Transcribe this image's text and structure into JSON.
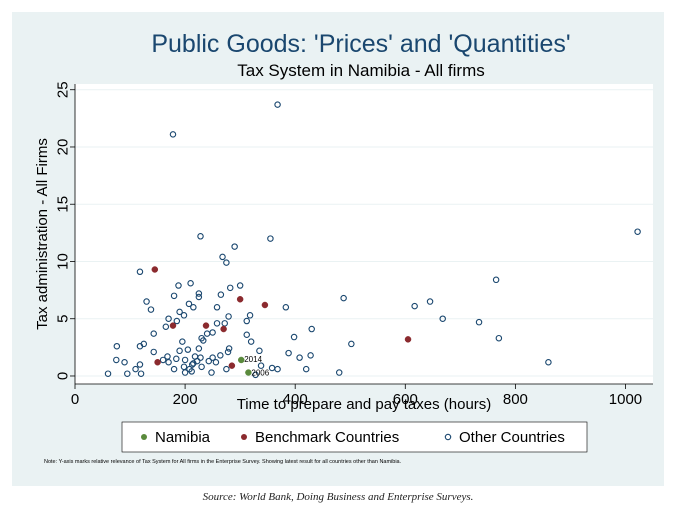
{
  "chart_data": {
    "type": "scatter",
    "title": "Public Goods: 'Prices' and 'Quantities'",
    "subtitle": "Tax System in Namibia - All firms",
    "xlabel": "Time to prepare and pay taxes (hours)",
    "ylabel": "Tax administration - All Firms",
    "xlim": [
      0,
      1050
    ],
    "ylim": [
      -0.7,
      25.5
    ],
    "xticks": [
      0,
      200,
      400,
      600,
      800,
      1000
    ],
    "yticks": [
      0,
      5,
      10,
      15,
      20,
      25
    ],
    "xtick_labels": [
      "0",
      "200",
      "400",
      "600",
      "800",
      "1000"
    ],
    "ytick_labels": [
      "0",
      "5",
      "10",
      "15",
      "20",
      "25"
    ],
    "grid": "horizontal",
    "legend_position": "bottom",
    "note": "Note: Y-axis marks relative relevance of Tax System for All firms in the Enterprise Survey. Showing latest result for all countries other than Namibia.",
    "source": "Source: World Bank, Doing Business and Enterprise Surveys.",
    "series": [
      {
        "name": "Namibia",
        "color": "#5a8a3c",
        "marker": "filled-circle",
        "points": [
          [
            302,
            1.4
          ],
          [
            315,
            0.3
          ]
        ],
        "labels": [
          "2014",
          "2006"
        ]
      },
      {
        "name": "Benchmark Countries",
        "color": "#8b2a2e",
        "marker": "filled-circle",
        "points": [
          [
            145,
            9.3
          ],
          [
            150,
            1.2
          ],
          [
            178,
            4.4
          ],
          [
            238,
            4.4
          ],
          [
            270,
            4.1
          ],
          [
            285,
            0.9
          ],
          [
            300,
            6.7
          ],
          [
            345,
            6.2
          ],
          [
            605,
            3.2
          ]
        ]
      },
      {
        "name": "Other Countries",
        "color": "#1a476f",
        "marker": "hollow-circle",
        "points": [
          [
            178,
            21.1
          ],
          [
            368,
            23.7
          ],
          [
            1022,
            12.6
          ],
          [
            228,
            12.2
          ],
          [
            355,
            12.0
          ],
          [
            290,
            11.3
          ],
          [
            268,
            10.4
          ],
          [
            275,
            9.9
          ],
          [
            118,
            9.1
          ],
          [
            765,
            8.4
          ],
          [
            188,
            7.9
          ],
          [
            210,
            8.1
          ],
          [
            300,
            7.9
          ],
          [
            282,
            7.7
          ],
          [
            225,
            7.2
          ],
          [
            180,
            7.0
          ],
          [
            265,
            7.1
          ],
          [
            225,
            6.9
          ],
          [
            130,
            6.5
          ],
          [
            207,
            6.3
          ],
          [
            488,
            6.8
          ],
          [
            645,
            6.5
          ],
          [
            617,
            6.1
          ],
          [
            215,
            6.0
          ],
          [
            258,
            6.0
          ],
          [
            383,
            6.0
          ],
          [
            138,
            5.8
          ],
          [
            190,
            5.6
          ],
          [
            198,
            5.3
          ],
          [
            318,
            5.3
          ],
          [
            170,
            5.0
          ],
          [
            185,
            4.8
          ],
          [
            668,
            5.0
          ],
          [
            279,
            5.2
          ],
          [
            312,
            4.8
          ],
          [
            258,
            4.6
          ],
          [
            272,
            4.6
          ],
          [
            165,
            4.3
          ],
          [
            250,
            3.8
          ],
          [
            240,
            3.7
          ],
          [
            143,
            3.7
          ],
          [
            430,
            4.1
          ],
          [
            398,
            3.4
          ],
          [
            312,
            3.6
          ],
          [
            230,
            3.3
          ],
          [
            734,
            4.7
          ],
          [
            770,
            3.3
          ],
          [
            233,
            3.1
          ],
          [
            195,
            3.0
          ],
          [
            320,
            3.0
          ],
          [
            125,
            2.8
          ],
          [
            502,
            2.8
          ],
          [
            76,
            2.6
          ],
          [
            118,
            2.6
          ],
          [
            225,
            2.4
          ],
          [
            280,
            2.4
          ],
          [
            190,
            2.2
          ],
          [
            205,
            2.3
          ],
          [
            278,
            2.1
          ],
          [
            335,
            2.2
          ],
          [
            388,
            2.0
          ],
          [
            143,
            2.1
          ],
          [
            168,
            1.7
          ],
          [
            218,
            1.7
          ],
          [
            250,
            1.6
          ],
          [
            264,
            1.8
          ],
          [
            75,
            1.4
          ],
          [
            90,
            1.2
          ],
          [
            160,
            1.4
          ],
          [
            184,
            1.5
          ],
          [
            200,
            1.4
          ],
          [
            228,
            1.6
          ],
          [
            243,
            1.3
          ],
          [
            408,
            1.6
          ],
          [
            428,
            1.8
          ],
          [
            860,
            1.2
          ],
          [
            170,
            1.2
          ],
          [
            213,
            1.0
          ],
          [
            222,
            1.3
          ],
          [
            256,
            1.2
          ],
          [
            198,
            0.8
          ],
          [
            215,
            1.1
          ],
          [
            230,
            0.8
          ],
          [
            118,
            1.0
          ],
          [
            110,
            0.6
          ],
          [
            180,
            0.6
          ],
          [
            208,
            0.6
          ],
          [
            212,
            0.4
          ],
          [
            275,
            0.6
          ],
          [
            338,
            0.9
          ],
          [
            358,
            0.7
          ],
          [
            368,
            0.6
          ],
          [
            420,
            0.6
          ],
          [
            60,
            0.2
          ],
          [
            95,
            0.2
          ],
          [
            120,
            0.2
          ],
          [
            200,
            0.3
          ],
          [
            248,
            0.3
          ],
          [
            328,
            0.1
          ],
          [
            480,
            0.3
          ]
        ]
      }
    ]
  }
}
